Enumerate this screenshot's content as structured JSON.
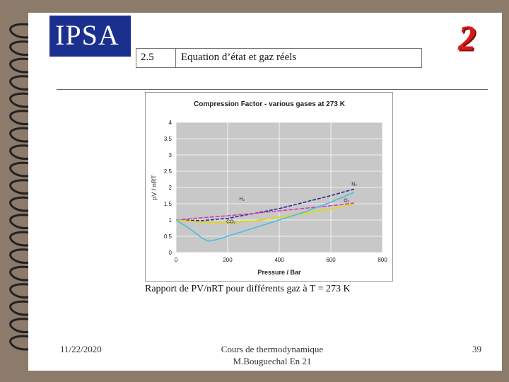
{
  "header": {
    "logo_text": "IPSA",
    "section_number": "2.5",
    "section_title": "Equation d’état et gaz réels",
    "page_mark": "2"
  },
  "caption": "Rapport de  PV/nRT  pour différents gaz à T = 273 K",
  "footer": {
    "date": "11/22/2020",
    "course_line1": "Cours de thermodynamique",
    "course_line2": "M.Bouguechal  En 21",
    "page_number": "39"
  },
  "colors": {
    "background": "#8c7a6b",
    "plot_area": "#c8c8c8",
    "logo_blue": "#1b2f8e",
    "page_mark_red": "#d91a1a"
  },
  "chart_data": {
    "type": "line",
    "title": "Compression Factor  - various gases at 273 K",
    "xlabel": "Pressure / Bar",
    "ylabel": "pV / nRT",
    "xlim": [
      0,
      800
    ],
    "ylim": [
      0,
      4
    ],
    "x_ticks": [
      "0",
      "200",
      "400",
      "600",
      "800"
    ],
    "y_ticks": [
      "0",
      "0.5",
      "1",
      "1.5",
      "2",
      "2.5",
      "3",
      "3.5",
      "4"
    ],
    "grid": true,
    "series": [
      {
        "name": "N2",
        "color": "#2a2f8a",
        "points": [
          [
            0,
            1.0
          ],
          [
            100,
            0.98
          ],
          [
            200,
            1.05
          ],
          [
            300,
            1.2
          ],
          [
            400,
            1.35
          ],
          [
            500,
            1.55
          ],
          [
            600,
            1.75
          ],
          [
            690,
            1.95
          ]
        ]
      },
      {
        "name": "H2",
        "color": "#d23fb5",
        "points": [
          [
            0,
            1.0
          ],
          [
            100,
            1.07
          ],
          [
            200,
            1.13
          ],
          [
            300,
            1.2
          ],
          [
            400,
            1.28
          ],
          [
            500,
            1.36
          ],
          [
            600,
            1.44
          ],
          [
            690,
            1.52
          ]
        ]
      },
      {
        "name": "O2",
        "color": "#e6d800",
        "points": [
          [
            0,
            1.0
          ],
          [
            100,
            0.93
          ],
          [
            200,
            0.92
          ],
          [
            300,
            0.97
          ],
          [
            400,
            1.08
          ],
          [
            500,
            1.2
          ],
          [
            600,
            1.35
          ],
          [
            690,
            1.48
          ]
        ]
      },
      {
        "name": "CO2",
        "color": "#45bfe0",
        "points": [
          [
            0,
            1.0
          ],
          [
            50,
            0.75
          ],
          [
            100,
            0.45
          ],
          [
            125,
            0.35
          ],
          [
            160,
            0.4
          ],
          [
            200,
            0.5
          ],
          [
            300,
            0.75
          ],
          [
            400,
            1.0
          ],
          [
            500,
            1.25
          ],
          [
            600,
            1.55
          ],
          [
            690,
            1.85
          ]
        ]
      }
    ],
    "series_labels": [
      {
        "text": "N₂",
        "x": 680,
        "y": 2.05
      },
      {
        "text": "H₂",
        "x": 245,
        "y": 1.6
      },
      {
        "text": "O₂",
        "x": 650,
        "y": 1.55
      },
      {
        "text": "CO₂",
        "x": 195,
        "y": 0.9
      }
    ]
  }
}
